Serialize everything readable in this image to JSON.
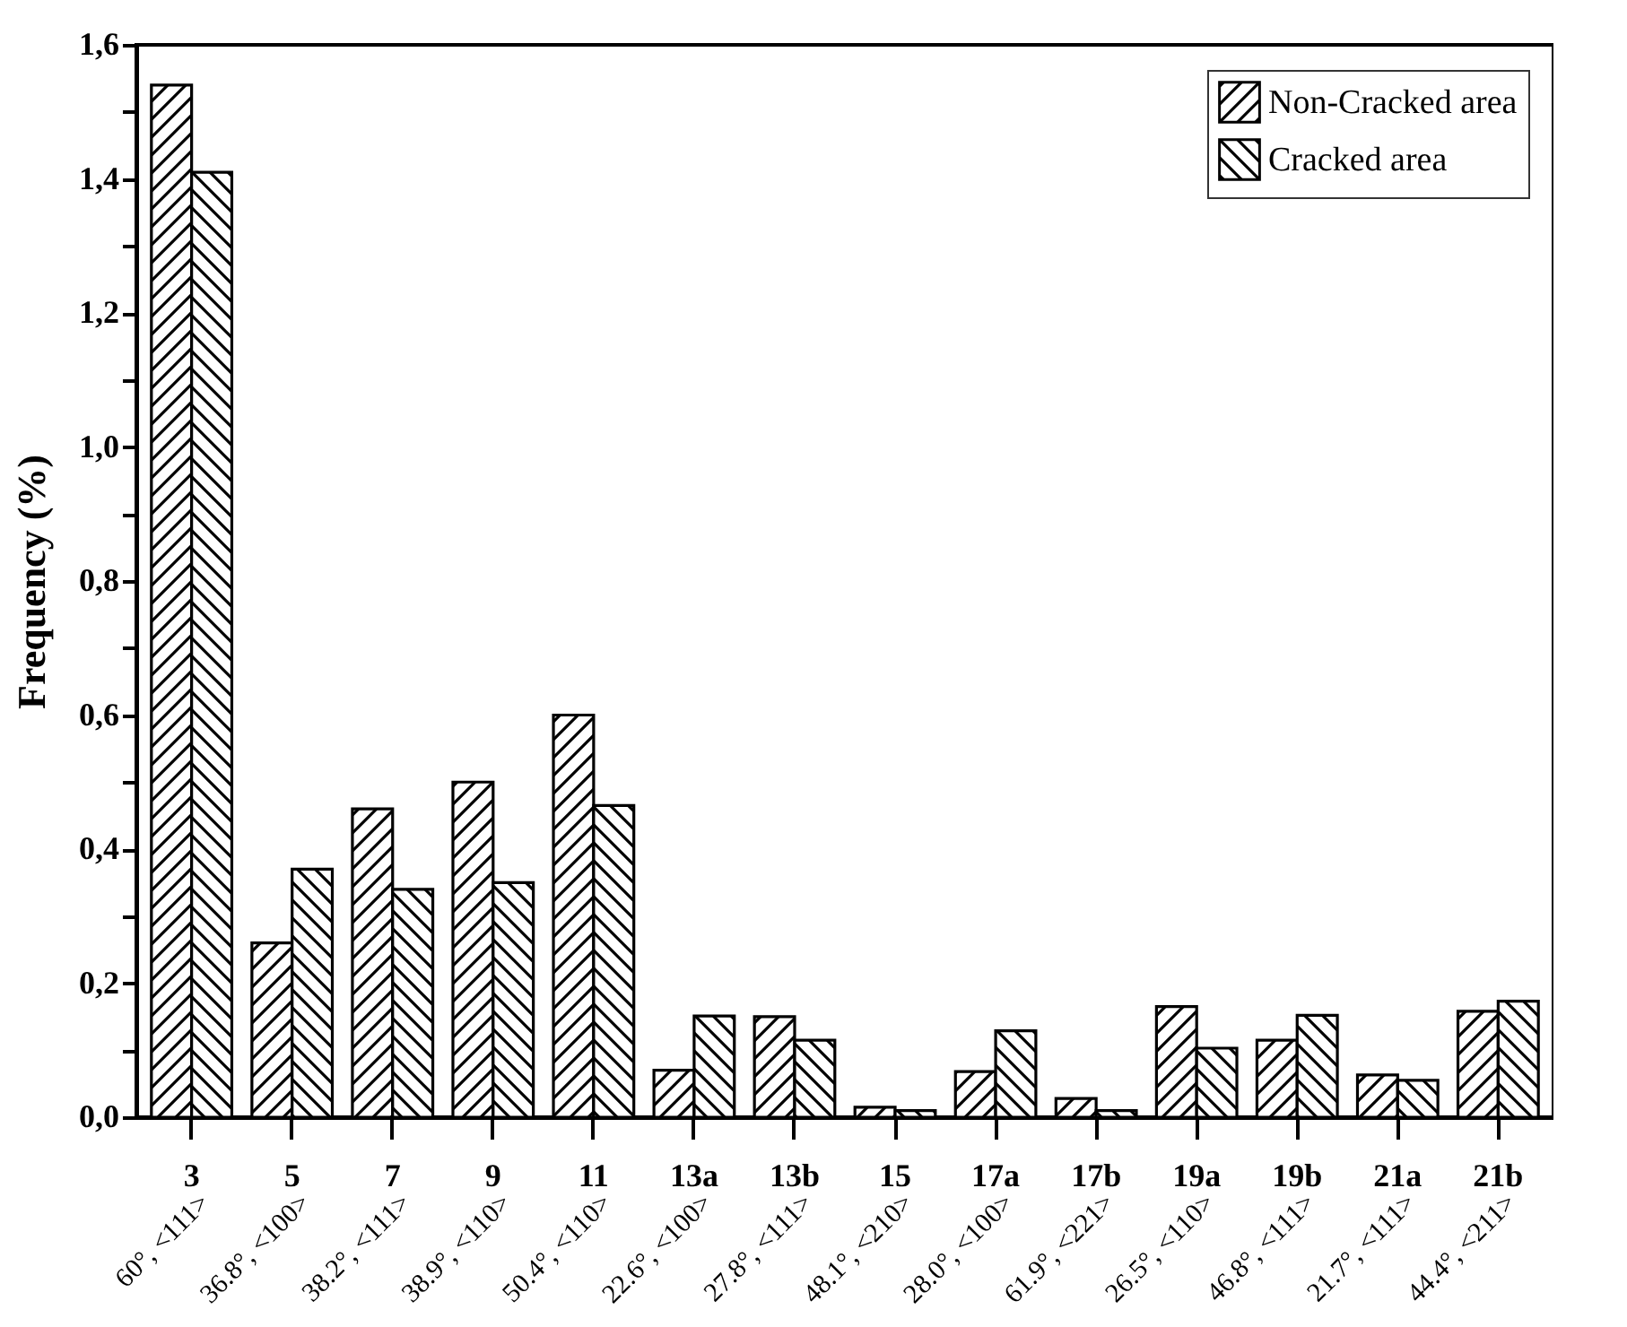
{
  "chart_data": {
    "type": "bar",
    "ylabel": "Frequency (%)",
    "categories": [
      "3",
      "5",
      "7",
      "9",
      "11",
      "13a",
      "13b",
      "15",
      "17a",
      "17b",
      "19a",
      "19b",
      "21a",
      "21b"
    ],
    "series": [
      {
        "name": "Non-Cracked area",
        "color": "#000000",
        "values": [
          1.54,
          0.26,
          0.46,
          0.5,
          0.6,
          0.07,
          0.15,
          0.015,
          0.068,
          0.028,
          0.165,
          0.115,
          0.063,
          0.158
        ]
      },
      {
        "name": "Cracked area",
        "color": "#000000",
        "values": [
          1.41,
          0.37,
          0.34,
          0.35,
          0.465,
          0.151,
          0.115,
          0.01,
          0.129,
          0.01,
          0.103,
          0.152,
          0.055,
          0.173
        ]
      }
    ],
    "ylim": [
      0,
      1.6
    ],
    "yticks": [
      {
        "value": 0,
        "label": "0,0"
      },
      {
        "value": 0.1,
        "label": null
      },
      {
        "value": 0.2,
        "label": "0,2"
      },
      {
        "value": 0.3,
        "label": null
      },
      {
        "value": 0.4,
        "label": "0,4"
      },
      {
        "value": 0.5,
        "label": null
      },
      {
        "value": 0.6,
        "label": "0,6"
      },
      {
        "value": 0.7,
        "label": null
      },
      {
        "value": 0.8,
        "label": "0,8"
      },
      {
        "value": 0.9,
        "label": null
      },
      {
        "value": 1.0,
        "label": "1,0"
      },
      {
        "value": 1.1,
        "label": null
      },
      {
        "value": 1.2,
        "label": "1,2"
      },
      {
        "value": 1.3,
        "label": null
      },
      {
        "value": 1.4,
        "label": "1,4"
      },
      {
        "value": 1.5,
        "label": null
      },
      {
        "value": 1.6,
        "label": "1,6"
      }
    ],
    "annotations": [
      "60°, <111>",
      "36.8°, <100>",
      "38.2°, <111>",
      "38.9°, <110>",
      "50.4°, <110>",
      "22.6°, <100>",
      "27.8°, <111>",
      "48.1°, <210>",
      "28.0°, <100>",
      "61.9°, <221>",
      "26.5°, <110>",
      "46.8°, <111>",
      "21.7°, <111>",
      "44.4°, <211>"
    ],
    "legend": "top right",
    "grid": false
  }
}
